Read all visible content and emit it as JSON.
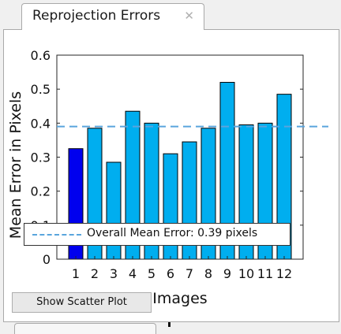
{
  "tab": {
    "title": "Reprojection Errors",
    "close_glyph": "✕"
  },
  "button": {
    "scatter_label": "Show Scatter Plot"
  },
  "chart_data": {
    "type": "bar",
    "categories": [
      "1",
      "2",
      "3",
      "4",
      "5",
      "6",
      "7",
      "8",
      "9",
      "10",
      "11",
      "12"
    ],
    "values": [
      0.325,
      0.385,
      0.285,
      0.435,
      0.4,
      0.31,
      0.345,
      0.385,
      0.52,
      0.395,
      0.4,
      0.485
    ],
    "selected_index": 0,
    "xlabel": "Images",
    "ylabel": "Mean Error in Pixels",
    "ylim": [
      0,
      0.6
    ],
    "yticks": [
      0,
      0.1,
      0.2,
      0.3,
      0.4,
      0.5,
      0.6
    ],
    "ytick_labels": [
      "0",
      "0.1",
      "0.2",
      "0.3",
      "0.4",
      "0.5",
      "0.6"
    ],
    "mean_line": {
      "value": 0.39,
      "label": "Overall Mean Error: 0.39 pixels"
    },
    "legend_position": "bottom",
    "colors": {
      "bar": "#00aeef",
      "bar_selected": "#0000ee",
      "bar_edge": "#000000",
      "mean_line": "#5aa5dd"
    }
  }
}
